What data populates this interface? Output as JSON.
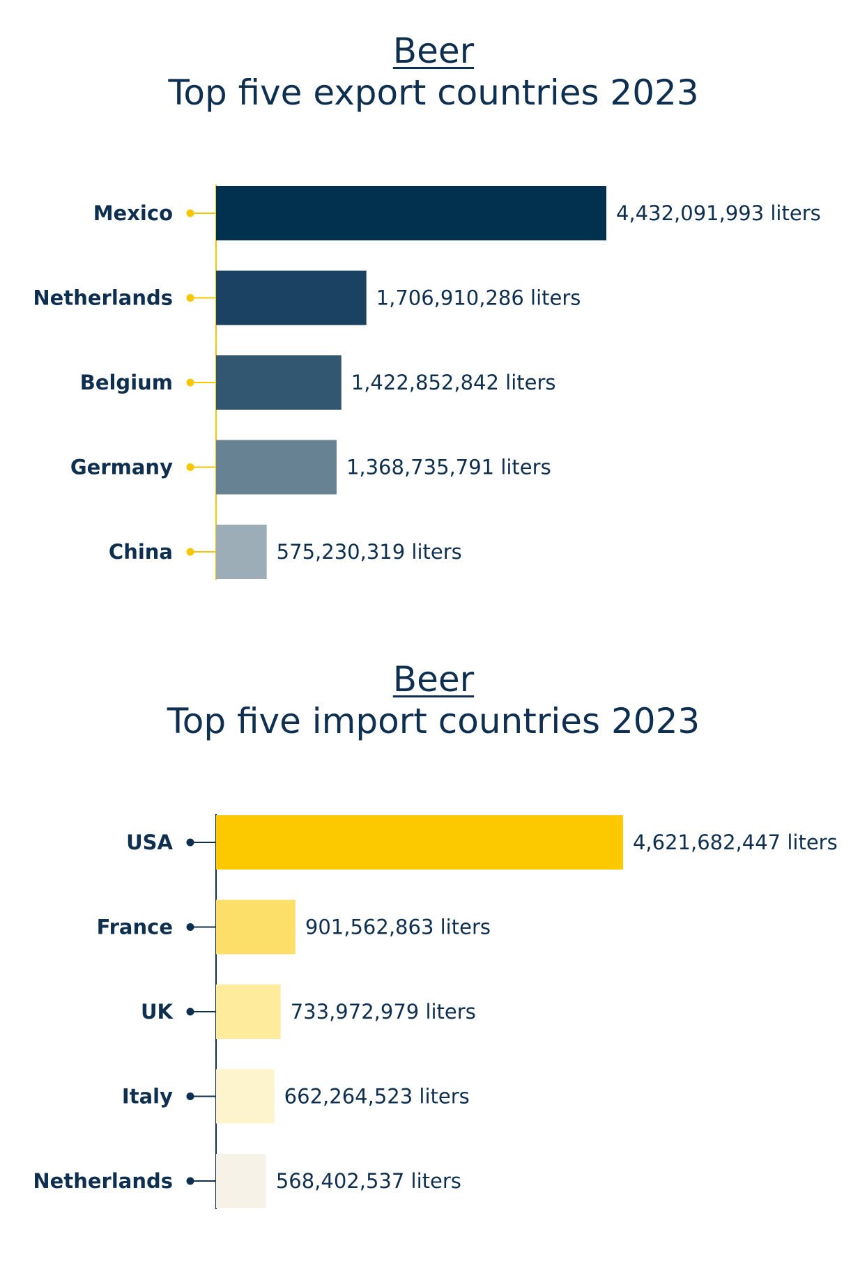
{
  "chart_data": [
    {
      "type": "bar",
      "title": "Beer",
      "subtitle": "Top five export countries 2023",
      "categories": [
        "Mexico",
        "Netherlands",
        "Belgium",
        "Germany",
        "China"
      ],
      "values": [
        4432091993,
        1706910286,
        1422852842,
        1368735791,
        575230319
      ],
      "value_labels": [
        "4,432,091,993 liters",
        "1,706,910,286 liters",
        "1,422,852,842 liters",
        "1,368,735,791 liters",
        "575,230,319 liters"
      ],
      "orientation": "horizontal",
      "unit": "liters",
      "bar_colors": [
        "#02304f",
        "#1b4263",
        "#325771",
        "#678292",
        "#9cadb8"
      ],
      "axis_color": "#f6c700",
      "dot_color": "#f6c700",
      "grid": false,
      "legend": "none"
    },
    {
      "type": "bar",
      "title": "Beer",
      "subtitle": "Top five import countries 2023",
      "categories": [
        "USA",
        "France",
        "UK",
        "Italy",
        "Netherlands"
      ],
      "values": [
        4621682447,
        901562863,
        733972979,
        662264523,
        568402537
      ],
      "value_labels": [
        "4,621,682,447 liters",
        "901,562,863 liters",
        "733,972,979 liters",
        "662,264,523 liters",
        "568,402,537 liters"
      ],
      "orientation": "horizontal",
      "unit": "liters",
      "bar_colors": [
        "#fcc900",
        "#fcdf68",
        "#feeb9c",
        "#fdf3cd",
        "#f6f2e7"
      ],
      "axis_color": "#0e2f4f",
      "dot_color": "#0e2f4f",
      "grid": false,
      "legend": "none"
    }
  ]
}
